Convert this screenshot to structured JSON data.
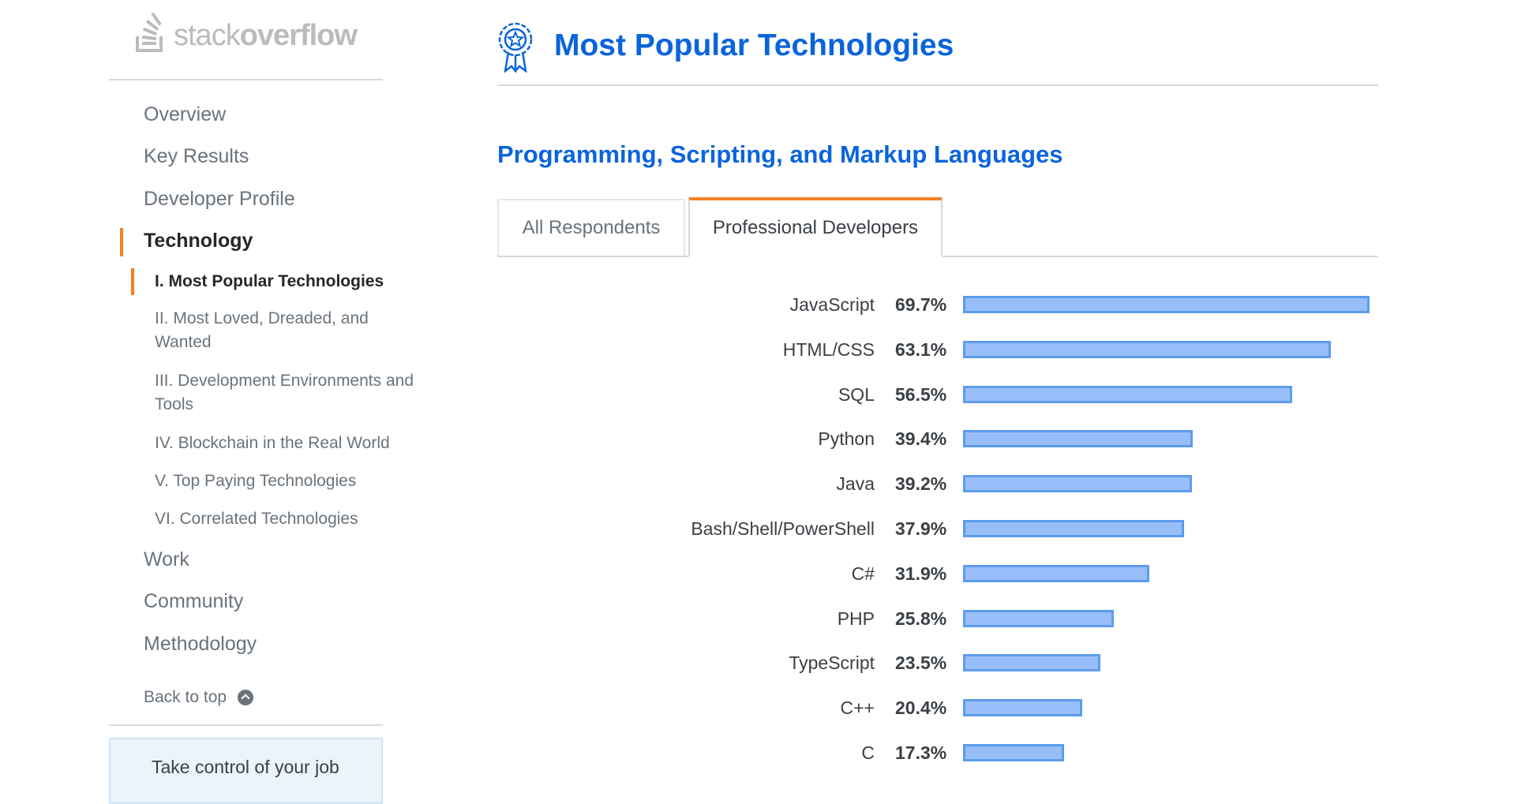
{
  "logo": {
    "light": "stack",
    "bold": "overflow"
  },
  "nav": {
    "items": [
      "Overview",
      "Key Results",
      "Developer Profile",
      "Technology",
      "Work",
      "Community",
      "Methodology"
    ],
    "active": "Technology",
    "sub_items": [
      "I. Most Popular Technologies",
      "II. Most Loved, Dreaded, and Wanted",
      "III. Development Environments and Tools",
      "IV. Blockchain in the Real World",
      "V. Top Paying Technologies",
      "VI. Correlated Technologies"
    ],
    "back_to_top": "Back to top"
  },
  "promo": {
    "text": "Take control of your job"
  },
  "header": {
    "title": "Most Popular Technologies"
  },
  "section": {
    "title": "Programming, Scripting, and Markup Languages"
  },
  "tabs": {
    "all": "All Respondents",
    "pro": "Professional Developers",
    "selected": "pro"
  },
  "colors": {
    "accent": "#0a64dc",
    "orange": "#f48024",
    "bar_fill": "#98befa",
    "bar_border": "#5d9cec"
  },
  "chart_data": {
    "type": "bar",
    "orientation": "horizontal",
    "title": "Programming, Scripting, and Markup Languages",
    "series_name": "Professional Developers",
    "unit": "%",
    "categories": [
      "JavaScript",
      "HTML/CSS",
      "SQL",
      "Python",
      "Java",
      "Bash/Shell/PowerShell",
      "C#",
      "PHP",
      "TypeScript",
      "C++",
      "C"
    ],
    "values": [
      69.7,
      63.1,
      56.5,
      39.4,
      39.2,
      37.9,
      31.9,
      25.8,
      23.5,
      20.4,
      17.3
    ],
    "labels": [
      "69.7%",
      "63.1%",
      "56.5%",
      "39.4%",
      "39.2%",
      "37.9%",
      "31.9%",
      "25.8%",
      "23.5%",
      "20.4%",
      "17.3%"
    ],
    "xlim": [
      0,
      69.7
    ]
  }
}
